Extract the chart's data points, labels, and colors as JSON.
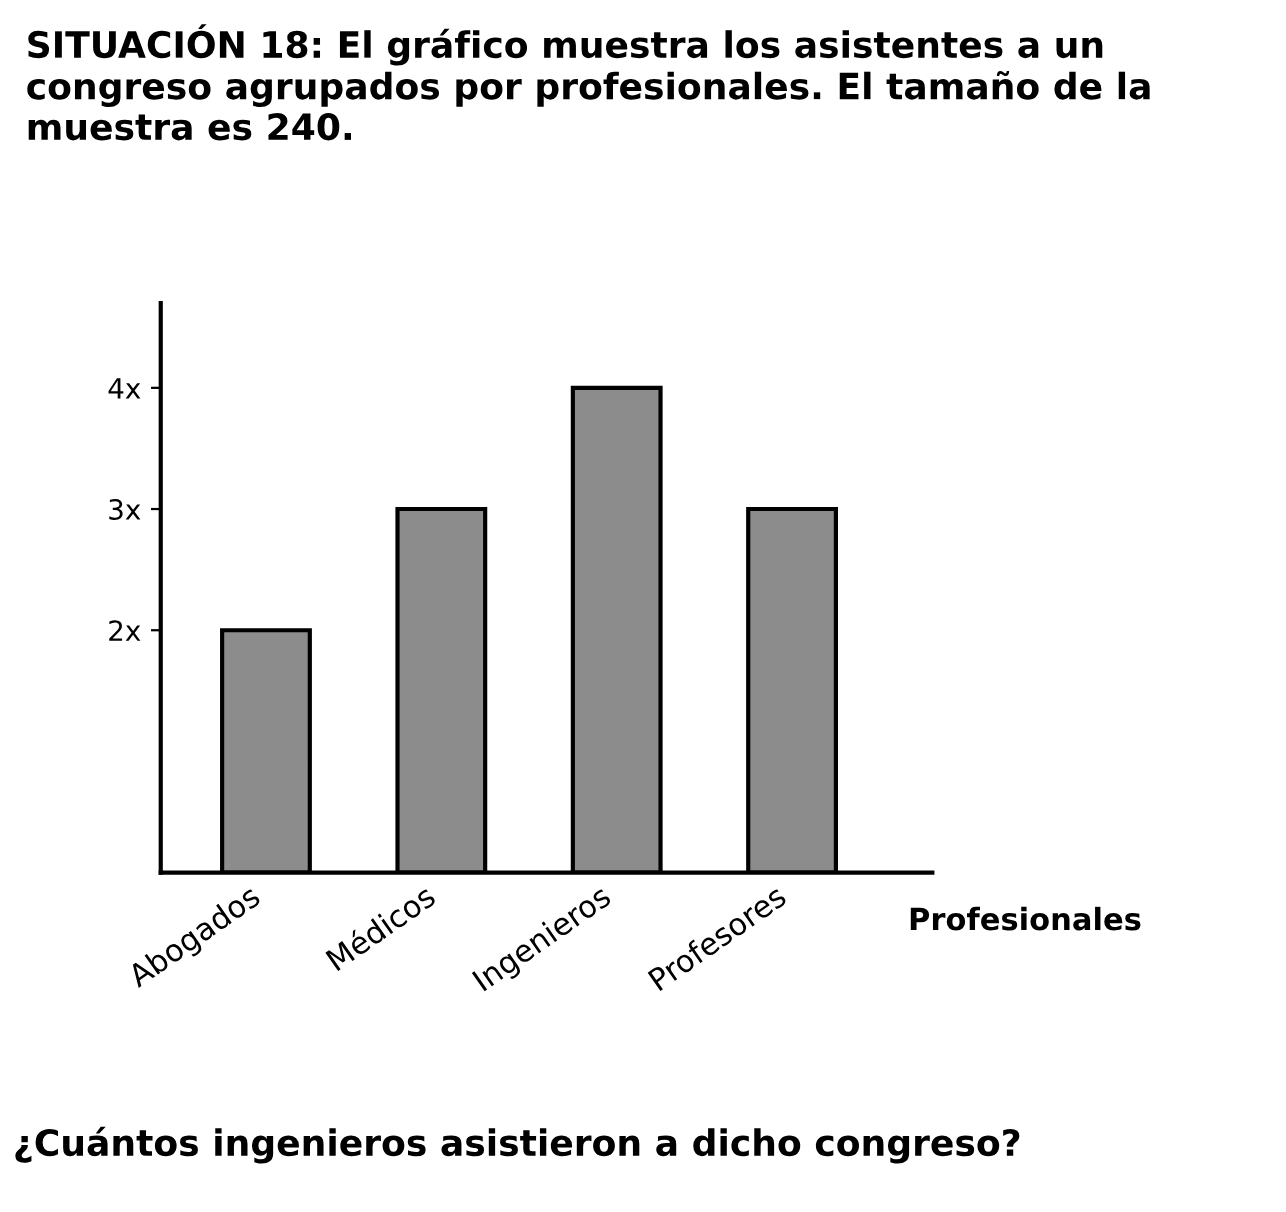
{
  "chart_data": {
    "type": "bar",
    "title": "SITUACIÓN 18: El gráfico muestra los asistentes a un congreso agrupados por profesionales. El tamaño de la muestra es 240.",
    "xlabel": "Profesionales",
    "categories": [
      "Abogados",
      "Médicos",
      "Ingenieros",
      "Profesores"
    ],
    "values": [
      2,
      3,
      4,
      3
    ],
    "color": "#8c8c8c",
    "ylim": [
      0,
      4.7
    ],
    "yticks": [
      {
        "value": 2,
        "label": "2x"
      },
      {
        "value": 3,
        "label": "3x"
      },
      {
        "value": 4,
        "label": "4x"
      }
    ],
    "grid": false,
    "annotations": [
      "¿Cuántos ingenieros asistieron a dicho congreso?"
    ]
  }
}
